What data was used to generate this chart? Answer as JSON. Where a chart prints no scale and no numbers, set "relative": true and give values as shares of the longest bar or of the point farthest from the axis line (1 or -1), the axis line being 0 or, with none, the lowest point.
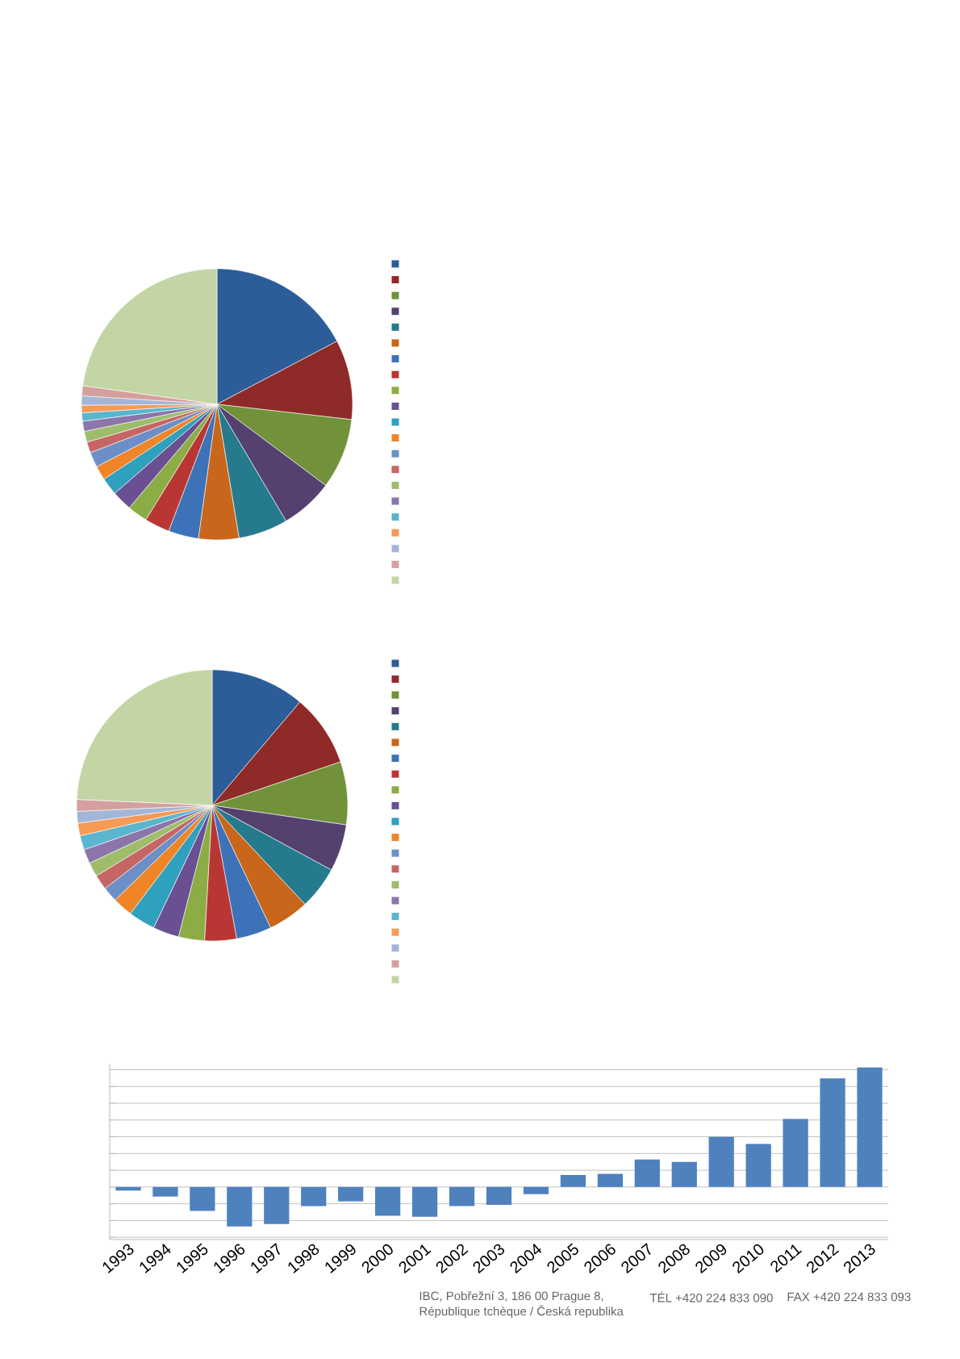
{
  "chart_data": [
    {
      "type": "pie",
      "categories": [
        null,
        null,
        null,
        null,
        null,
        null,
        null,
        null,
        null,
        null,
        null,
        null,
        null,
        null,
        null,
        null,
        null,
        null,
        null,
        null,
        null
      ],
      "values": [
        17.3,
        9.5,
        8.4,
        6.3,
        5.9,
        4.8,
        3.6,
        3.0,
        2.4,
        2.4,
        2.1,
        1.7,
        1.8,
        1.3,
        1.3,
        1.2,
        1.0,
        0.9,
        1.1,
        1.2,
        22.8
      ],
      "colors": [
        "#2c5d98",
        "#8e2a28",
        "#71913a",
        "#54416f",
        "#257a8e",
        "#c8661b",
        "#3d72b8",
        "#b83735",
        "#8cad45",
        "#6a4f93",
        "#2fa0bd",
        "#ef8527",
        "#6b8fc6",
        "#c56665",
        "#9ebd6b",
        "#8b75a9",
        "#5ab5cf",
        "#f69a55",
        "#a3b6d8",
        "#d4a09f",
        "#c4d5a5"
      ]
    },
    {
      "type": "pie",
      "categories": [
        null,
        null,
        null,
        null,
        null,
        null,
        null,
        null,
        null,
        null,
        null,
        null,
        null,
        null,
        null,
        null,
        null,
        null,
        null,
        null,
        null
      ],
      "values": [
        11.2,
        8.6,
        7.5,
        5.6,
        5.1,
        4.9,
        4.2,
        3.8,
        3.1,
        3.1,
        3.2,
        2.4,
        1.8,
        1.8,
        1.7,
        1.7,
        1.7,
        1.5,
        1.4,
        1.4,
        24.3
      ],
      "colors": [
        "#2c5d98",
        "#8e2a28",
        "#71913a",
        "#54416f",
        "#257a8e",
        "#c8661b",
        "#3d72b8",
        "#b83735",
        "#8cad45",
        "#6a4f93",
        "#2fa0bd",
        "#ef8527",
        "#6b8fc6",
        "#c56665",
        "#9ebd6b",
        "#8b75a9",
        "#5ab5cf",
        "#f69a55",
        "#a3b6d8",
        "#d4a09f",
        "#c4d5a5"
      ]
    },
    {
      "type": "bar",
      "relative": true,
      "tick_labels": "x",
      "grid": "y",
      "color": "#4f81bd",
      "categories": [
        "1993",
        "1994",
        "1995",
        "1996",
        "1997",
        "1998",
        "1999",
        "2000",
        "2001",
        "2002",
        "2003",
        "2004",
        "2005",
        "2006",
        "2007",
        "2008",
        "2009",
        "2010",
        "2011",
        "2012",
        "2013"
      ],
      "values": [
        -0.03,
        -0.08,
        -0.2,
        -0.33,
        -0.31,
        -0.16,
        -0.12,
        -0.24,
        -0.25,
        -0.16,
        -0.15,
        -0.06,
        0.1,
        0.11,
        0.23,
        0.21,
        0.42,
        0.36,
        0.57,
        0.91,
        1
      ],
      "annotations": [
        "IBC, Pobřežní 3, 186 00 Prague 8,",
        "République tchèque / Česká republika",
        "TÉL +420 224 833 090",
        "FAX +420 224 833 093"
      ]
    }
  ]
}
